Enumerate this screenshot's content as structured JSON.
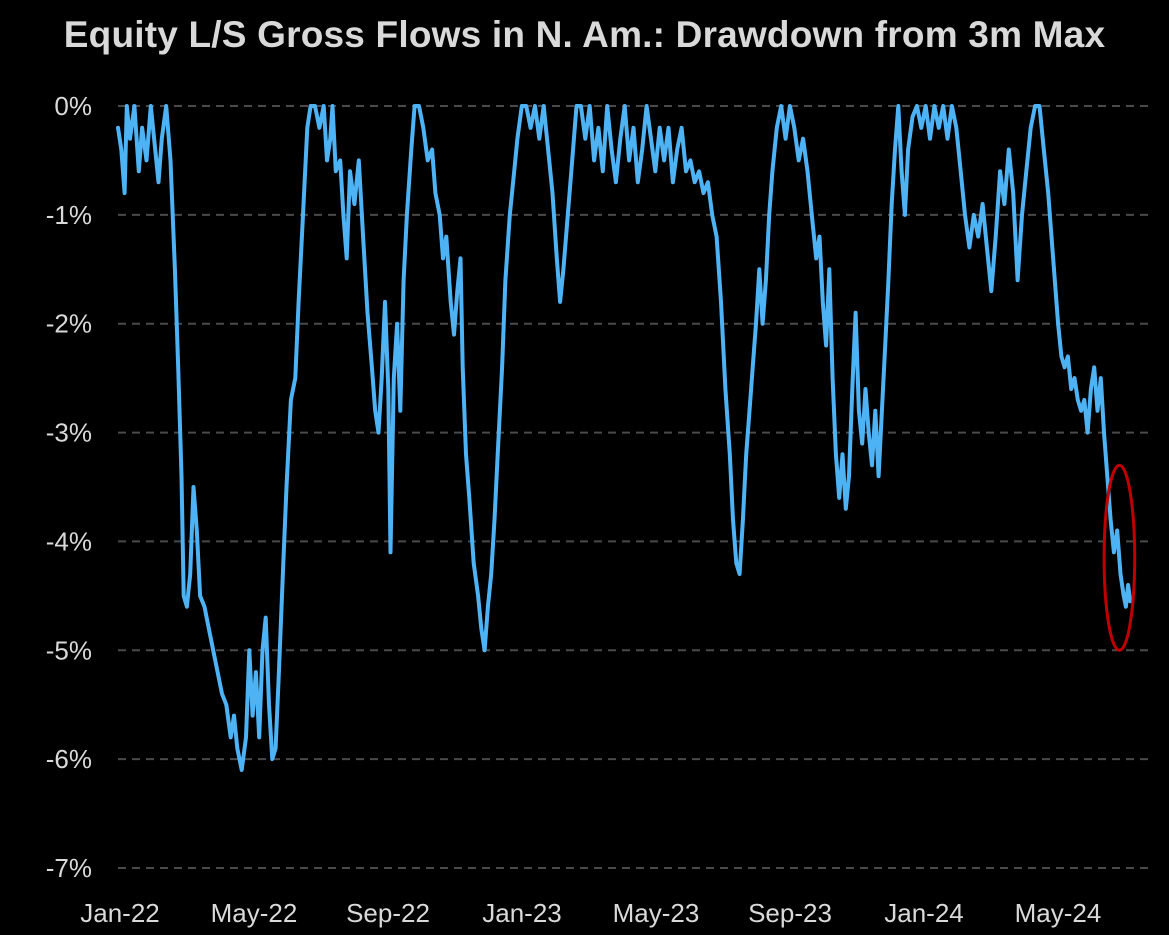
{
  "chart_data": {
    "type": "line",
    "title": "Equity L/S Gross Flows in N. Am.: Drawdown from 3m Max",
    "xlabel": "",
    "ylabel": "",
    "y_ticks": [
      "0%",
      "-1%",
      "-2%",
      "-3%",
      "-4%",
      "-5%",
      "-6%",
      "-7%"
    ],
    "x_ticks": [
      "Jan-22",
      "May-22",
      "Sep-22",
      "Jan-23",
      "May-23",
      "Sep-23",
      "Jan-24",
      "May-24"
    ],
    "x_range": [
      "2022-01-01",
      "2024-08-01"
    ],
    "ylim": [
      -7,
      0
    ],
    "grid": "horizontal dashed",
    "line_color": "#4db3f5",
    "highlight_color": "#c00000",
    "series": [
      {
        "values": [
          [
            "2022-01-01",
            -0.2
          ],
          [
            "2022-01-04",
            -0.4
          ],
          [
            "2022-01-07",
            -0.8
          ],
          [
            "2022-01-09",
            0.0
          ],
          [
            "2022-01-12",
            -0.3
          ],
          [
            "2022-01-16",
            0.0
          ],
          [
            "2022-01-20",
            -0.6
          ],
          [
            "2022-01-23",
            -0.2
          ],
          [
            "2022-01-27",
            -0.5
          ],
          [
            "2022-01-31",
            0.0
          ],
          [
            "2022-02-04",
            -0.4
          ],
          [
            "2022-02-07",
            -0.7
          ],
          [
            "2022-02-10",
            -0.3
          ],
          [
            "2022-02-14",
            0.0
          ],
          [
            "2022-02-18",
            -0.5
          ],
          [
            "2022-02-22",
            -1.5
          ],
          [
            "2022-02-25",
            -2.4
          ],
          [
            "2022-02-28",
            -3.4
          ],
          [
            "2022-03-02",
            -4.5
          ],
          [
            "2022-03-05",
            -4.6
          ],
          [
            "2022-03-08",
            -4.3
          ],
          [
            "2022-03-11",
            -3.5
          ],
          [
            "2022-03-14",
            -3.9
          ],
          [
            "2022-03-17",
            -4.5
          ],
          [
            "2022-03-21",
            -4.6
          ],
          [
            "2022-03-25",
            -4.8
          ],
          [
            "2022-03-29",
            -5.0
          ],
          [
            "2022-04-02",
            -5.2
          ],
          [
            "2022-04-06",
            -5.4
          ],
          [
            "2022-04-10",
            -5.5
          ],
          [
            "2022-04-14",
            -5.8
          ],
          [
            "2022-04-17",
            -5.6
          ],
          [
            "2022-04-20",
            -5.9
          ],
          [
            "2022-04-24",
            -6.1
          ],
          [
            "2022-04-28",
            -5.8
          ],
          [
            "2022-05-01",
            -5.0
          ],
          [
            "2022-05-04",
            -5.6
          ],
          [
            "2022-05-07",
            -5.2
          ],
          [
            "2022-05-10",
            -5.8
          ],
          [
            "2022-05-13",
            -5.0
          ],
          [
            "2022-05-16",
            -4.7
          ],
          [
            "2022-05-19",
            -5.5
          ],
          [
            "2022-05-22",
            -6.0
          ],
          [
            "2022-05-25",
            -5.9
          ],
          [
            "2022-05-28",
            -5.2
          ],
          [
            "2022-06-01",
            -4.2
          ],
          [
            "2022-06-04",
            -3.5
          ],
          [
            "2022-06-08",
            -2.7
          ],
          [
            "2022-06-12",
            -2.5
          ],
          [
            "2022-06-15",
            -1.8
          ],
          [
            "2022-06-19",
            -1.0
          ],
          [
            "2022-06-23",
            -0.2
          ],
          [
            "2022-06-26",
            0.0
          ],
          [
            "2022-06-30",
            0.0
          ],
          [
            "2022-07-04",
            -0.2
          ],
          [
            "2022-07-08",
            0.0
          ],
          [
            "2022-07-11",
            -0.5
          ],
          [
            "2022-07-14",
            -0.3
          ],
          [
            "2022-07-16",
            0.0
          ],
          [
            "2022-07-19",
            -0.6
          ],
          [
            "2022-07-23",
            -0.5
          ],
          [
            "2022-07-26",
            -1.0
          ],
          [
            "2022-07-29",
            -1.4
          ],
          [
            "2022-08-01",
            -0.6
          ],
          [
            "2022-08-05",
            -0.9
          ],
          [
            "2022-08-09",
            -0.5
          ],
          [
            "2022-08-13",
            -1.2
          ],
          [
            "2022-08-17",
            -1.9
          ],
          [
            "2022-08-21",
            -2.4
          ],
          [
            "2022-08-24",
            -2.8
          ],
          [
            "2022-08-27",
            -3.0
          ],
          [
            "2022-08-30",
            -2.5
          ],
          [
            "2022-09-02",
            -1.8
          ],
          [
            "2022-09-05",
            -2.6
          ],
          [
            "2022-09-07",
            -4.1
          ],
          [
            "2022-09-10",
            -2.5
          ],
          [
            "2022-09-13",
            -2.0
          ],
          [
            "2022-09-16",
            -2.8
          ],
          [
            "2022-09-19",
            -1.6
          ],
          [
            "2022-09-22",
            -1.0
          ],
          [
            "2022-09-26",
            -0.4
          ],
          [
            "2022-09-29",
            0.0
          ],
          [
            "2022-10-03",
            0.0
          ],
          [
            "2022-10-07",
            -0.2
          ],
          [
            "2022-10-11",
            -0.5
          ],
          [
            "2022-10-15",
            -0.4
          ],
          [
            "2022-10-18",
            -0.8
          ],
          [
            "2022-10-22",
            -1.0
          ],
          [
            "2022-10-25",
            -1.4
          ],
          [
            "2022-10-28",
            -1.2
          ],
          [
            "2022-11-01",
            -1.8
          ],
          [
            "2022-11-04",
            -2.1
          ],
          [
            "2022-11-07",
            -1.7
          ],
          [
            "2022-11-10",
            -1.4
          ],
          [
            "2022-11-12",
            -2.4
          ],
          [
            "2022-11-15",
            -3.2
          ],
          [
            "2022-11-18",
            -3.6
          ],
          [
            "2022-11-22",
            -4.2
          ],
          [
            "2022-11-26",
            -4.5
          ],
          [
            "2022-11-29",
            -4.8
          ],
          [
            "2022-12-02",
            -5.0
          ],
          [
            "2022-12-05",
            -4.6
          ],
          [
            "2022-12-08",
            -4.3
          ],
          [
            "2022-12-11",
            -3.8
          ],
          [
            "2022-12-14",
            -3.2
          ],
          [
            "2022-12-18",
            -2.4
          ],
          [
            "2022-12-21",
            -1.6
          ],
          [
            "2022-12-25",
            -1.0
          ],
          [
            "2022-12-29",
            -0.6
          ],
          [
            "2023-01-01",
            -0.3
          ],
          [
            "2023-01-05",
            0.0
          ],
          [
            "2023-01-09",
            0.0
          ],
          [
            "2023-01-13",
            -0.2
          ],
          [
            "2023-01-17",
            0.0
          ],
          [
            "2023-01-21",
            -0.3
          ],
          [
            "2023-01-25",
            0.0
          ],
          [
            "2023-01-29",
            -0.4
          ],
          [
            "2023-02-02",
            -0.8
          ],
          [
            "2023-02-06",
            -1.4
          ],
          [
            "2023-02-09",
            -1.8
          ],
          [
            "2023-02-12",
            -1.5
          ],
          [
            "2023-02-16",
            -1.0
          ],
          [
            "2023-02-20",
            -0.5
          ],
          [
            "2023-02-24",
            0.0
          ],
          [
            "2023-02-28",
            0.0
          ],
          [
            "2023-03-04",
            -0.3
          ],
          [
            "2023-03-08",
            0.0
          ],
          [
            "2023-03-12",
            -0.5
          ],
          [
            "2023-03-16",
            -0.2
          ],
          [
            "2023-03-20",
            -0.6
          ],
          [
            "2023-03-24",
            0.0
          ],
          [
            "2023-03-28",
            -0.4
          ],
          [
            "2023-04-01",
            -0.7
          ],
          [
            "2023-04-05",
            -0.3
          ],
          [
            "2023-04-09",
            0.0
          ],
          [
            "2023-04-13",
            -0.5
          ],
          [
            "2023-04-17",
            -0.2
          ],
          [
            "2023-04-21",
            -0.7
          ],
          [
            "2023-04-25",
            -0.4
          ],
          [
            "2023-04-29",
            0.0
          ],
          [
            "2023-05-03",
            -0.3
          ],
          [
            "2023-05-07",
            -0.6
          ],
          [
            "2023-05-11",
            -0.2
          ],
          [
            "2023-05-15",
            -0.5
          ],
          [
            "2023-05-19",
            -0.2
          ],
          [
            "2023-05-23",
            -0.7
          ],
          [
            "2023-05-27",
            -0.4
          ],
          [
            "2023-05-31",
            -0.2
          ],
          [
            "2023-06-04",
            -0.6
          ],
          [
            "2023-06-08",
            -0.5
          ],
          [
            "2023-06-12",
            -0.7
          ],
          [
            "2023-06-16",
            -0.6
          ],
          [
            "2023-06-20",
            -0.8
          ],
          [
            "2023-06-24",
            -0.7
          ],
          [
            "2023-06-28",
            -1.0
          ],
          [
            "2023-07-02",
            -1.2
          ],
          [
            "2023-07-06",
            -1.8
          ],
          [
            "2023-07-10",
            -2.6
          ],
          [
            "2023-07-14",
            -3.2
          ],
          [
            "2023-07-17",
            -3.8
          ],
          [
            "2023-07-20",
            -4.2
          ],
          [
            "2023-07-23",
            -4.3
          ],
          [
            "2023-07-26",
            -3.8
          ],
          [
            "2023-07-29",
            -3.2
          ],
          [
            "2023-08-01",
            -2.8
          ],
          [
            "2023-08-04",
            -2.4
          ],
          [
            "2023-08-07",
            -2.0
          ],
          [
            "2023-08-10",
            -1.5
          ],
          [
            "2023-08-13",
            -2.0
          ],
          [
            "2023-08-16",
            -1.6
          ],
          [
            "2023-08-19",
            -1.0
          ],
          [
            "2023-08-22",
            -0.6
          ],
          [
            "2023-08-26",
            -0.2
          ],
          [
            "2023-08-30",
            0.0
          ],
          [
            "2023-09-03",
            -0.3
          ],
          [
            "2023-09-07",
            0.0
          ],
          [
            "2023-09-11",
            -0.2
          ],
          [
            "2023-09-15",
            -0.5
          ],
          [
            "2023-09-19",
            -0.3
          ],
          [
            "2023-09-23",
            -0.6
          ],
          [
            "2023-09-27",
            -1.0
          ],
          [
            "2023-10-01",
            -1.4
          ],
          [
            "2023-10-04",
            -1.2
          ],
          [
            "2023-10-07",
            -1.8
          ],
          [
            "2023-10-10",
            -2.2
          ],
          [
            "2023-10-13",
            -1.5
          ],
          [
            "2023-10-16",
            -2.5
          ],
          [
            "2023-10-19",
            -3.2
          ],
          [
            "2023-10-22",
            -3.6
          ],
          [
            "2023-10-25",
            -3.2
          ],
          [
            "2023-10-28",
            -3.7
          ],
          [
            "2023-10-31",
            -3.4
          ],
          [
            "2023-11-03",
            -2.6
          ],
          [
            "2023-11-06",
            -1.9
          ],
          [
            "2023-11-09",
            -2.8
          ],
          [
            "2023-11-12",
            -3.1
          ],
          [
            "2023-11-15",
            -2.6
          ],
          [
            "2023-11-18",
            -3.0
          ],
          [
            "2023-11-21",
            -3.3
          ],
          [
            "2023-11-24",
            -2.8
          ],
          [
            "2023-11-27",
            -3.4
          ],
          [
            "2023-11-30",
            -2.8
          ],
          [
            "2023-12-03",
            -2.2
          ],
          [
            "2023-12-06",
            -1.6
          ],
          [
            "2023-12-09",
            -0.9
          ],
          [
            "2023-12-12",
            -0.4
          ],
          [
            "2023-12-15",
            0.0
          ],
          [
            "2023-12-18",
            -0.6
          ],
          [
            "2023-12-21",
            -1.0
          ],
          [
            "2023-12-24",
            -0.4
          ],
          [
            "2023-12-28",
            -0.1
          ],
          [
            "2024-01-01",
            0.0
          ],
          [
            "2024-01-05",
            -0.2
          ],
          [
            "2024-01-09",
            0.0
          ],
          [
            "2024-01-13",
            -0.3
          ],
          [
            "2024-01-17",
            0.0
          ],
          [
            "2024-01-21",
            -0.2
          ],
          [
            "2024-01-25",
            0.0
          ],
          [
            "2024-01-29",
            -0.3
          ],
          [
            "2024-02-02",
            0.0
          ],
          [
            "2024-02-06",
            -0.2
          ],
          [
            "2024-02-10",
            -0.6
          ],
          [
            "2024-02-14",
            -1.0
          ],
          [
            "2024-02-18",
            -1.3
          ],
          [
            "2024-02-22",
            -1.0
          ],
          [
            "2024-02-26",
            -1.2
          ],
          [
            "2024-03-01",
            -0.9
          ],
          [
            "2024-03-05",
            -1.3
          ],
          [
            "2024-03-09",
            -1.7
          ],
          [
            "2024-03-13",
            -1.2
          ],
          [
            "2024-03-17",
            -0.6
          ],
          [
            "2024-03-21",
            -0.9
          ],
          [
            "2024-03-25",
            -0.4
          ],
          [
            "2024-03-29",
            -0.8
          ],
          [
            "2024-04-02",
            -1.6
          ],
          [
            "2024-04-06",
            -1.0
          ],
          [
            "2024-04-10",
            -0.6
          ],
          [
            "2024-04-14",
            -0.2
          ],
          [
            "2024-04-18",
            0.0
          ],
          [
            "2024-04-22",
            0.0
          ],
          [
            "2024-04-26",
            -0.4
          ],
          [
            "2024-04-30",
            -0.8
          ],
          [
            "2024-05-03",
            -1.2
          ],
          [
            "2024-05-06",
            -1.6
          ],
          [
            "2024-05-09",
            -2.0
          ],
          [
            "2024-05-12",
            -2.3
          ],
          [
            "2024-05-15",
            -2.4
          ],
          [
            "2024-05-18",
            -2.3
          ],
          [
            "2024-05-21",
            -2.6
          ],
          [
            "2024-05-24",
            -2.5
          ],
          [
            "2024-05-27",
            -2.7
          ],
          [
            "2024-05-30",
            -2.8
          ],
          [
            "2024-06-02",
            -2.7
          ],
          [
            "2024-06-05",
            -3.0
          ],
          [
            "2024-06-08",
            -2.6
          ],
          [
            "2024-06-11",
            -2.4
          ],
          [
            "2024-06-14",
            -2.8
          ],
          [
            "2024-06-17",
            -2.5
          ],
          [
            "2024-06-20",
            -3.0
          ],
          [
            "2024-06-23",
            -3.4
          ],
          [
            "2024-06-26",
            -3.8
          ],
          [
            "2024-06-29",
            -4.1
          ],
          [
            "2024-07-02",
            -3.9
          ],
          [
            "2024-07-05",
            -4.3
          ],
          [
            "2024-07-08",
            -4.5
          ],
          [
            "2024-07-10",
            -4.6
          ],
          [
            "2024-07-12",
            -4.4
          ],
          [
            "2024-07-14",
            -4.55
          ]
        ]
      }
    ],
    "highlight_range": {
      "x": [
        "2024-06-20",
        "2024-07-18"
      ],
      "y": [
        -5.0,
        -3.3
      ]
    }
  }
}
